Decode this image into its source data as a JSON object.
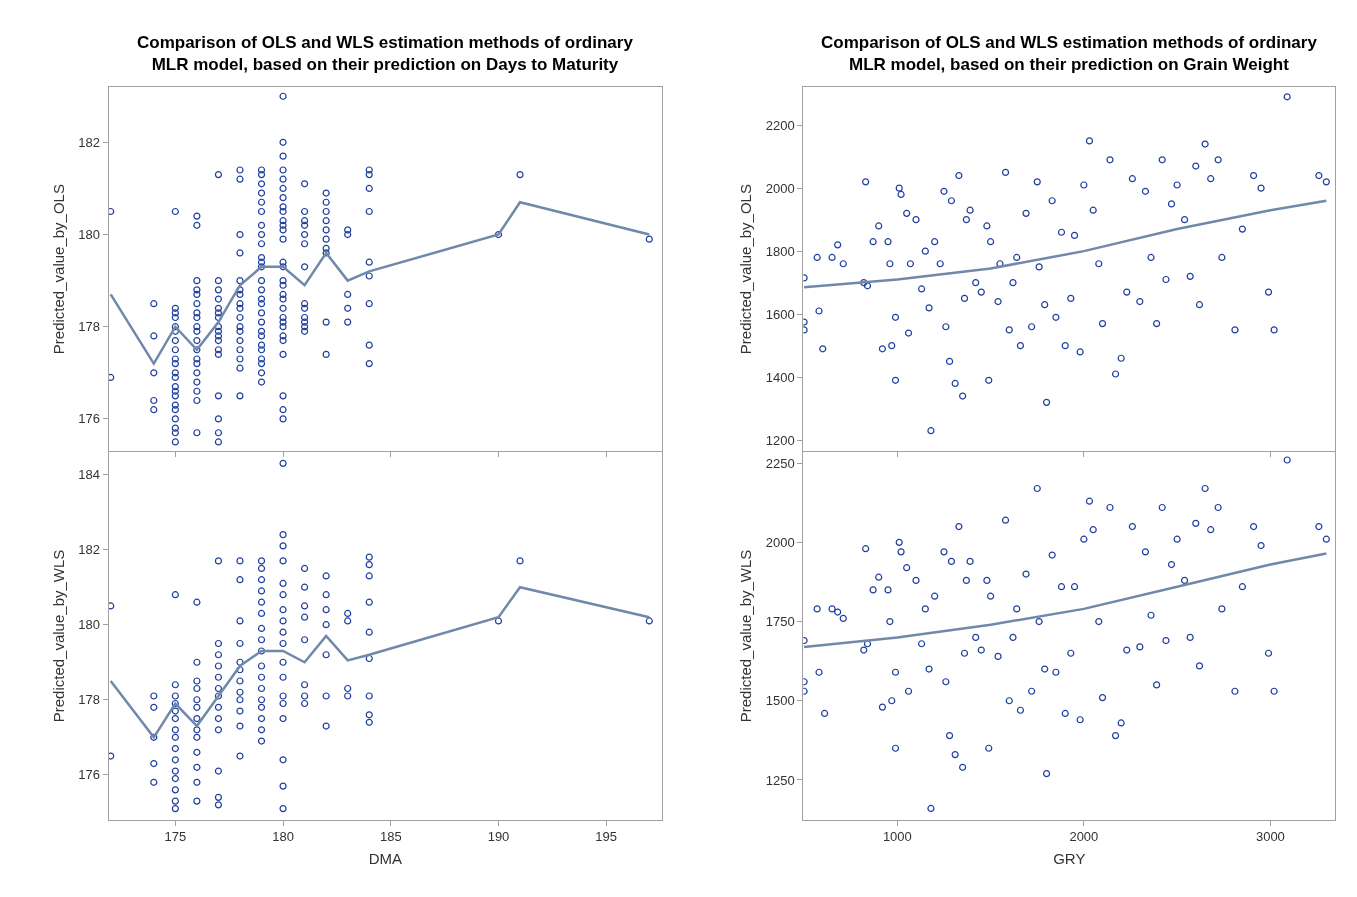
{
  "chart_data": [
    {
      "type": "scatter",
      "title": "Comparison of OLS and WLS estimation methods of ordinary\nMLR model, based on their prediction on Days to Maturity",
      "ylabel": "Predicted_value_by_OLS",
      "xlim": [
        171.9,
        197.6
      ],
      "xticks": [
        175,
        180,
        185,
        190,
        195
      ],
      "ylim": [
        175.3,
        183.2
      ],
      "yticks": [
        176,
        178,
        180,
        182
      ],
      "tick_labels": "y",
      "series": [
        {
          "type": "scatter",
          "marker": "circle",
          "color": "#1f3f9f",
          "x": [
            172,
            172,
            174,
            174,
            174,
            174,
            174,
            175,
            175,
            175,
            175,
            175,
            175,
            175,
            175,
            175,
            175,
            175,
            175,
            175,
            175,
            175,
            175,
            175,
            175,
            175,
            175,
            175,
            176,
            176,
            176,
            176,
            176,
            176,
            176,
            176,
            176,
            176,
            176,
            176,
            176,
            176,
            176,
            176,
            176,
            176,
            176,
            177,
            177,
            177,
            177,
            177,
            177,
            177,
            177,
            177,
            177,
            177,
            177,
            177,
            177,
            177,
            177,
            177,
            178,
            178,
            178,
            178,
            178,
            178,
            178,
            178,
            178,
            178,
            178,
            178,
            178,
            178,
            178,
            178,
            178,
            179,
            179,
            179,
            179,
            179,
            179,
            179,
            179,
            179,
            179,
            179,
            179,
            179,
            179,
            179,
            179,
            179,
            179,
            179,
            179,
            179,
            179,
            179,
            179,
            179,
            179,
            180,
            180,
            180,
            180,
            180,
            180,
            180,
            180,
            180,
            180,
            180,
            180,
            180,
            180,
            180,
            180,
            180,
            180,
            180,
            180,
            180,
            180,
            180,
            180,
            180,
            180,
            180,
            180,
            180,
            181,
            181,
            181,
            181,
            181,
            181,
            181,
            181,
            181,
            181,
            181,
            181,
            181,
            182,
            182,
            182,
            182,
            182,
            182,
            182,
            182,
            182,
            182,
            183,
            183,
            183,
            183,
            183,
            184,
            184,
            184,
            184,
            184,
            184,
            184,
            184,
            184,
            190,
            191,
            197
          ],
          "values": [
            180.5,
            176.9,
            178.5,
            177.8,
            177.0,
            176.4,
            176.2,
            180.5,
            178.4,
            178.3,
            178.2,
            178.0,
            177.9,
            177.7,
            177.5,
            177.3,
            177.2,
            177.0,
            176.9,
            176.7,
            176.6,
            176.5,
            176.3,
            176.2,
            176.0,
            175.8,
            175.7,
            175.5,
            180.4,
            180.2,
            179.0,
            178.8,
            178.7,
            178.5,
            178.3,
            178.2,
            178.0,
            177.9,
            177.7,
            177.5,
            177.3,
            177.2,
            177.0,
            176.8,
            176.6,
            176.4,
            175.7,
            181.3,
            179.0,
            178.8,
            178.6,
            178.4,
            178.3,
            178.2,
            178.0,
            177.9,
            177.8,
            177.7,
            177.5,
            177.4,
            176.5,
            176.0,
            175.7,
            175.5,
            181.4,
            181.2,
            180.0,
            179.6,
            179.0,
            178.8,
            178.7,
            178.5,
            178.4,
            178.2,
            178.0,
            177.9,
            177.7,
            177.5,
            177.3,
            177.1,
            176.5,
            181.4,
            181.3,
            181.1,
            180.9,
            180.7,
            180.5,
            180.2,
            180.0,
            179.8,
            179.5,
            179.4,
            179.3,
            179.0,
            178.8,
            178.6,
            178.5,
            178.3,
            178.1,
            177.9,
            177.8,
            177.6,
            177.5,
            177.3,
            177.2,
            177.0,
            176.8,
            183.0,
            182.0,
            181.7,
            181.4,
            181.2,
            181.0,
            180.8,
            180.6,
            180.5,
            180.3,
            180.2,
            180.1,
            179.9,
            179.4,
            179.3,
            179.0,
            178.9,
            178.7,
            178.6,
            178.4,
            178.2,
            178.1,
            178.0,
            177.8,
            177.7,
            177.4,
            176.5,
            176.2,
            176.0,
            181.1,
            180.5,
            180.3,
            180.2,
            180.0,
            179.8,
            179.3,
            178.5,
            178.4,
            178.2,
            178.1,
            178.0,
            177.9,
            180.9,
            180.7,
            180.5,
            180.3,
            180.1,
            179.9,
            179.7,
            179.6,
            178.1,
            177.4,
            180.1,
            180.0,
            178.7,
            178.4,
            178.1,
            181.4,
            181.3,
            181.0,
            180.5,
            179.4,
            179.1,
            178.5,
            177.6,
            177.2,
            180.0,
            181.3,
            179.9
          ]
        },
        {
          "type": "line",
          "marker": "none",
          "color": "#7088aa",
          "x": [
            172,
            174,
            175,
            176,
            177,
            178,
            179,
            180,
            181,
            182,
            183,
            184,
            190,
            191,
            197
          ],
          "values": [
            178.7,
            177.2,
            178.0,
            177.5,
            178.1,
            178.9,
            179.3,
            179.3,
            178.9,
            179.6,
            179.0,
            179.2,
            180.0,
            180.7,
            180.0
          ]
        }
      ]
    },
    {
      "type": "scatter",
      "title": "Comparison of OLS and WLS estimation methods of ordinary\nMLR model, based on their prediction on Grain Weight",
      "ylabel": "Predicted_value_by_OLS",
      "xlim": [
        496,
        3348
      ],
      "xticks": [
        1000,
        2000,
        3000
      ],
      "ylim": [
        1165,
        2321
      ],
      "yticks": [
        1200,
        1400,
        1600,
        1800,
        2000,
        2200
      ],
      "tick_labels": "y",
      "series": [
        {
          "type": "scatter",
          "marker": "circle",
          "color": "#1f3f9f",
          "x": [
            500,
            500,
            500,
            570,
            580,
            600,
            650,
            680,
            710,
            830,
            820,
            840,
            870,
            900,
            920,
            950,
            960,
            970,
            990,
            990,
            1010,
            1020,
            1050,
            1060,
            1070,
            1100,
            1130,
            1150,
            1170,
            1180,
            1200,
            1230,
            1250,
            1260,
            1280,
            1290,
            1310,
            1330,
            1350,
            1360,
            1370,
            1390,
            1420,
            1450,
            1480,
            1490,
            1500,
            1540,
            1550,
            1580,
            1600,
            1620,
            1640,
            1660,
            1690,
            1720,
            1750,
            1760,
            1790,
            1800,
            1830,
            1850,
            1880,
            1900,
            1930,
            1950,
            1980,
            2000,
            2030,
            2050,
            2080,
            2100,
            2140,
            2170,
            2200,
            2230,
            2260,
            2300,
            2330,
            2360,
            2390,
            2420,
            2440,
            2470,
            2500,
            2540,
            2570,
            2600,
            2620,
            2650,
            2680,
            2720,
            2740,
            2810,
            2850,
            2910,
            2950,
            2990,
            3020,
            3090,
            3260,
            3300
          ],
          "values": [
            1715,
            1575,
            1550,
            1780,
            1610,
            1490,
            1780,
            1820,
            1760,
            2020,
            1700,
            1690,
            1830,
            1880,
            1490,
            1830,
            1760,
            1500,
            1590,
            1390,
            2000,
            1980,
            1920,
            1540,
            1760,
            1900,
            1680,
            1800,
            1620,
            1230,
            1830,
            1760,
            1990,
            1560,
            1450,
            1960,
            1380,
            2040,
            1340,
            1650,
            1900,
            1930,
            1700,
            1670,
            1880,
            1390,
            1830,
            1640,
            1760,
            2050,
            1550,
            1700,
            1780,
            1500,
            1920,
            1560,
            2020,
            1750,
            1630,
            1320,
            1960,
            1590,
            1860,
            1500,
            1650,
            1850,
            1480,
            2010,
            2150,
            1930,
            1760,
            1570,
            2090,
            1410,
            1460,
            1670,
            2030,
            1640,
            1990,
            1780,
            1570,
            2090,
            1710,
            1950,
            2010,
            1900,
            1720,
            2070,
            1630,
            2140,
            2030,
            2090,
            1780,
            1550,
            1870,
            2040,
            2000,
            1670,
            1550,
            2290,
            2040,
            2020
          ]
        },
        {
          "type": "line",
          "marker": "none",
          "color": "#7088aa",
          "x": [
            500,
            1000,
            1500,
            2000,
            2500,
            3000,
            3300
          ],
          "values": [
            1685,
            1710,
            1745,
            1800,
            1870,
            1930,
            1960
          ]
        }
      ]
    },
    {
      "type": "scatter",
      "xlabel": "DMA",
      "ylabel": "Predicted_value_by_WLS",
      "xlim": [
        171.9,
        197.6
      ],
      "xticks": [
        175,
        180,
        185,
        190,
        195
      ],
      "ylim": [
        174.8,
        184.6
      ],
      "yticks": [
        176,
        178,
        180,
        182,
        184
      ],
      "series": [
        {
          "type": "scatter",
          "marker": "circle",
          "color": "#1f3f9f",
          "x": [
            172,
            172,
            174,
            174,
            174,
            174,
            174,
            175,
            175,
            175,
            175,
            175,
            175,
            175,
            175,
            175,
            175,
            175,
            175,
            175,
            175,
            175,
            176,
            176,
            176,
            176,
            176,
            176,
            176,
            176,
            176,
            176,
            176,
            176,
            176,
            177,
            177,
            177,
            177,
            177,
            177,
            177,
            177,
            177,
            177,
            177,
            177,
            177,
            178,
            178,
            178,
            178,
            178,
            178,
            178,
            178,
            178,
            178,
            178,
            178,
            179,
            179,
            179,
            179,
            179,
            179,
            179,
            179,
            179,
            179,
            179,
            179,
            179,
            179,
            179,
            179,
            179,
            180,
            180,
            180,
            180,
            180,
            180,
            180,
            180,
            180,
            180,
            180,
            180,
            180,
            180,
            180,
            180,
            180,
            180,
            181,
            181,
            181,
            181,
            181,
            181,
            181,
            181,
            182,
            182,
            182,
            182,
            182,
            182,
            182,
            183,
            183,
            183,
            183,
            184,
            184,
            184,
            184,
            184,
            184,
            184,
            184,
            184,
            190,
            191,
            197
          ],
          "values": [
            180.5,
            176.5,
            178.1,
            177.8,
            177.0,
            176.3,
            175.8,
            180.8,
            178.4,
            178.1,
            177.9,
            177.7,
            177.5,
            177.2,
            177.0,
            176.7,
            176.4,
            176.1,
            175.9,
            175.6,
            175.3,
            175.1,
            180.6,
            179.0,
            178.5,
            178.3,
            178.0,
            177.8,
            177.5,
            177.2,
            177.0,
            176.6,
            176.2,
            175.8,
            175.3,
            181.7,
            179.5,
            179.2,
            178.9,
            178.6,
            178.3,
            178.1,
            177.8,
            177.5,
            177.2,
            176.1,
            175.4,
            175.2,
            181.7,
            181.2,
            180.1,
            179.5,
            179.0,
            178.8,
            178.5,
            178.2,
            178.0,
            177.7,
            177.3,
            176.5,
            181.7,
            181.5,
            181.2,
            180.9,
            180.6,
            180.3,
            179.9,
            179.6,
            179.3,
            178.9,
            178.6,
            178.3,
            178.0,
            177.8,
            177.5,
            177.2,
            176.9,
            184.3,
            182.4,
            182.1,
            181.7,
            181.1,
            180.8,
            180.4,
            180.1,
            179.8,
            179.5,
            179.0,
            178.6,
            178.1,
            177.9,
            177.5,
            176.4,
            175.7,
            175.1,
            181.5,
            181.0,
            180.5,
            180.2,
            179.6,
            178.4,
            178.1,
            177.9,
            181.3,
            180.8,
            180.4,
            180.0,
            179.2,
            178.1,
            177.3,
            180.3,
            180.1,
            178.3,
            178.1,
            181.8,
            181.6,
            181.3,
            180.6,
            179.8,
            179.1,
            178.1,
            177.6,
            177.4,
            180.1,
            181.7,
            180.1
          ]
        },
        {
          "type": "line",
          "marker": "none",
          "color": "#7088aa",
          "x": [
            172,
            174,
            175,
            176,
            177,
            178,
            179,
            180,
            181,
            182,
            183,
            184,
            190,
            191,
            197
          ],
          "values": [
            178.5,
            177.0,
            177.9,
            177.3,
            178.1,
            178.9,
            179.3,
            179.3,
            179.0,
            179.7,
            179.05,
            179.2,
            180.2,
            181.0,
            180.2
          ]
        }
      ]
    },
    {
      "type": "scatter",
      "xlabel": "GRY",
      "ylabel": "Predicted_value_by_WLS",
      "xlim": [
        496,
        3348
      ],
      "xticks": [
        1000,
        2000,
        3000
      ],
      "ylim": [
        1124,
        2285
      ],
      "yticks": [
        1250,
        1500,
        1750,
        2000,
        2250
      ],
      "series": [
        {
          "type": "scatter",
          "marker": "circle",
          "color": "#1f3f9f",
          "x": [
            500,
            500,
            500,
            570,
            580,
            610,
            650,
            680,
            710,
            830,
            820,
            840,
            870,
            900,
            920,
            950,
            960,
            970,
            990,
            990,
            1010,
            1020,
            1050,
            1060,
            1100,
            1130,
            1150,
            1170,
            1180,
            1200,
            1250,
            1260,
            1280,
            1290,
            1310,
            1330,
            1350,
            1360,
            1370,
            1390,
            1420,
            1450,
            1480,
            1490,
            1500,
            1540,
            1580,
            1600,
            1620,
            1640,
            1660,
            1690,
            1720,
            1750,
            1760,
            1790,
            1800,
            1830,
            1850,
            1880,
            1900,
            1930,
            1950,
            1980,
            2000,
            2030,
            2050,
            2080,
            2100,
            2140,
            2170,
            2200,
            2230,
            2260,
            2300,
            2330,
            2360,
            2390,
            2420,
            2440,
            2470,
            2500,
            2540,
            2570,
            2600,
            2620,
            2650,
            2680,
            2720,
            2740,
            2810,
            2850,
            2910,
            2950,
            2990,
            3020,
            3090,
            3260,
            3300
          ],
          "values": [
            1690,
            1560,
            1530,
            1790,
            1590,
            1460,
            1790,
            1780,
            1760,
            1980,
            1660,
            1680,
            1850,
            1890,
            1480,
            1850,
            1750,
            1500,
            1590,
            1350,
            2000,
            1970,
            1920,
            1530,
            1880,
            1680,
            1790,
            1600,
            1160,
            1830,
            1970,
            1560,
            1390,
            1940,
            1330,
            2050,
            1290,
            1650,
            1880,
            1940,
            1700,
            1660,
            1880,
            1350,
            1830,
            1640,
            2070,
            1500,
            1700,
            1790,
            1470,
            1900,
            1530,
            2170,
            1750,
            1600,
            1270,
            1960,
            1590,
            1860,
            1460,
            1650,
            1860,
            1440,
            2010,
            2130,
            2040,
            1750,
            1510,
            2110,
            1390,
            1430,
            1660,
            2050,
            1670,
            1970,
            1770,
            1550,
            2110,
            1690,
            1930,
            2010,
            1880,
            1700,
            2060,
            1610,
            2170,
            2040,
            2110,
            1790,
            1530,
            1860,
            2050,
            1990,
            1650,
            1530,
            2260,
            2050,
            2010
          ]
        },
        {
          "type": "line",
          "marker": "none",
          "color": "#7088aa",
          "x": [
            500,
            1000,
            1500,
            2000,
            2500,
            3000,
            3300
          ],
          "values": [
            1670,
            1700,
            1740,
            1790,
            1860,
            1930,
            1965
          ]
        }
      ]
    }
  ]
}
